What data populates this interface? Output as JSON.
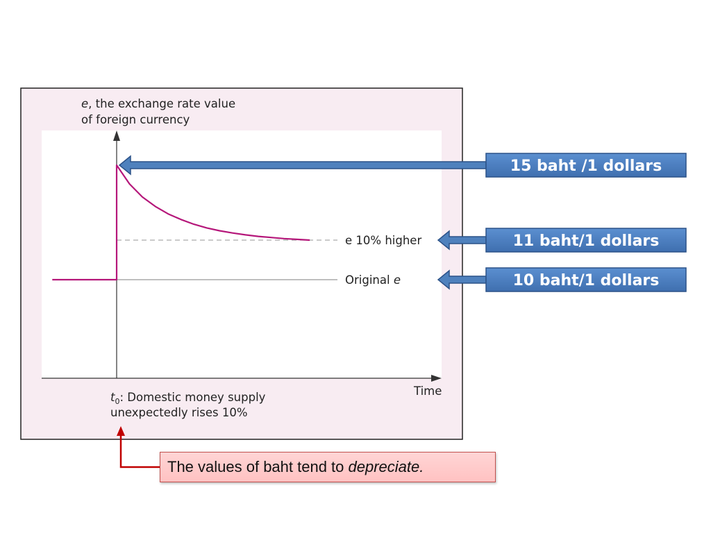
{
  "chart_data": {
    "type": "line",
    "ylabel_lines": [
      "e, the exchange rate value",
      "of foreign currency"
    ],
    "ylabel_italic_prefix": "e",
    "xlabel": "Time",
    "x_event": {
      "symbol": "t",
      "subscript": "0",
      "lines": [
        ":  Domestic money supply",
        "unexpectedly rises 10%"
      ]
    },
    "levels": {
      "original": 10,
      "new_long_run": 11,
      "overshoot_peak": 15
    },
    "ylim": [
      0,
      17
    ],
    "xlim": [
      -10,
      40
    ],
    "series": [
      {
        "style": "solid",
        "color": "#b5177a",
        "x": [
          -10,
          0,
          0,
          2,
          4,
          6,
          8,
          10,
          12,
          14,
          16,
          18,
          20,
          22,
          24,
          26,
          28,
          30
        ],
        "y": [
          10,
          10,
          15,
          14.0,
          13.3,
          12.8,
          12.4,
          12.1,
          11.85,
          11.65,
          11.5,
          11.38,
          11.28,
          11.2,
          11.14,
          11.08,
          11.04,
          11.0
        ]
      }
    ],
    "reference_lines": [
      {
        "level": 11,
        "style": "dashed",
        "label": "e 10% higher"
      },
      {
        "level": 10,
        "style": "solid",
        "label": "Original e"
      }
    ],
    "grid": false
  },
  "callouts": [
    {
      "text": "15 baht /1 dollars",
      "level": 15
    },
    {
      "text": "11 baht/1 dollars",
      "level": 11
    },
    {
      "text": "10 baht/1 dollars",
      "level": 10
    }
  ],
  "note": {
    "prefix": "The values of baht tend to ",
    "emphasis": "depreciate."
  },
  "colors": {
    "curve": "#b5177a",
    "frame_bg": "#f8ecf2",
    "plot_bg": "#ffffff",
    "callout_fill": "#4a7ebf",
    "callout_border": "#2c5288",
    "arrow_blue": "#4f81bd",
    "note_arrow": "#c00000"
  }
}
